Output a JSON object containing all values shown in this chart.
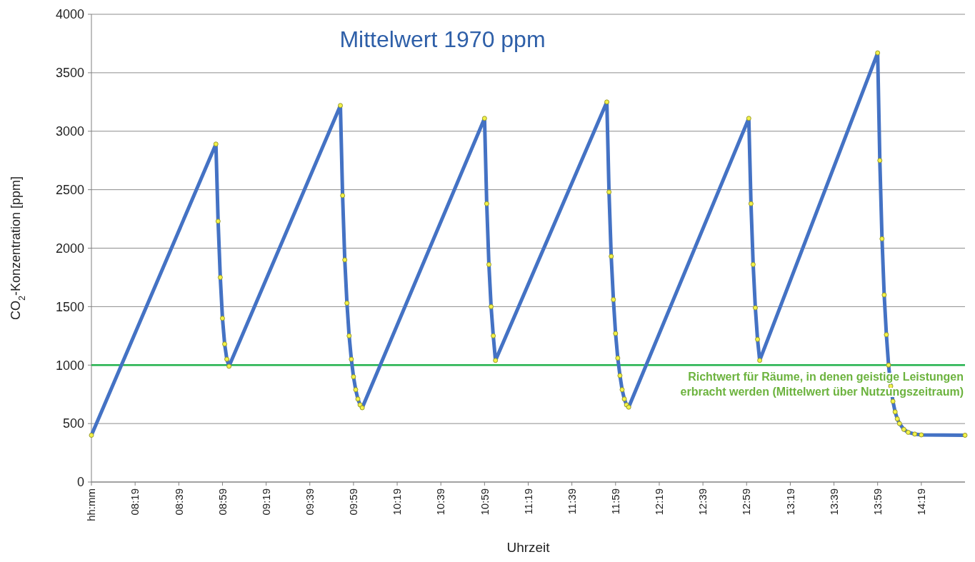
{
  "chart_data": {
    "type": "line",
    "title": "Mittelwert 1970 ppm",
    "xlabel": "Uhrzeit",
    "ylabel": "CO$_{2}$-Konzentration [ppm]",
    "xlim": [
      7.9833,
      14.65
    ],
    "xticks": [
      {
        "value": 7.9833,
        "label": "hh:mm"
      },
      {
        "value": 8.3167,
        "label": "08:19"
      },
      {
        "value": 8.65,
        "label": "08:39"
      },
      {
        "value": 8.9833,
        "label": "08:59"
      },
      {
        "value": 9.3167,
        "label": "09:19"
      },
      {
        "value": 9.65,
        "label": "09:39"
      },
      {
        "value": 9.9833,
        "label": "09:59"
      },
      {
        "value": 10.3167,
        "label": "10:19"
      },
      {
        "value": 10.65,
        "label": "10:39"
      },
      {
        "value": 10.9833,
        "label": "10:59"
      },
      {
        "value": 11.3167,
        "label": "11:19"
      },
      {
        "value": 11.65,
        "label": "11:39"
      },
      {
        "value": 11.9833,
        "label": "11:59"
      },
      {
        "value": 12.3167,
        "label": "12:19"
      },
      {
        "value": 12.65,
        "label": "12:39"
      },
      {
        "value": 12.9833,
        "label": "12:59"
      },
      {
        "value": 13.3167,
        "label": "13:19"
      },
      {
        "value": 13.65,
        "label": "13:39"
      },
      {
        "value": 13.9833,
        "label": "13:59"
      },
      {
        "value": 14.3167,
        "label": "14:19"
      }
    ],
    "ylim": [
      0,
      4000
    ],
    "yticks": [
      0,
      500,
      1000,
      1500,
      2000,
      2500,
      3000,
      3500,
      4000
    ],
    "grid": "y",
    "marker": "circle",
    "line_style": "solid",
    "ref_lines": [
      {
        "axis": "y",
        "value": 1000,
        "label": "Richtwert für Räume, in denen geistige Leistungen erbracht werden (Mittelwert über Nutzungszeitraum)",
        "color": "#22b14c"
      }
    ],
    "series": [
      {
        "color": "#4472c4",
        "x": [
          7.9833,
          8.9333,
          8.95,
          8.9667,
          8.9833,
          9,
          9.0167,
          9.0333,
          9.8833,
          9.9,
          9.9167,
          9.9333,
          9.95,
          9.9667,
          9.9833,
          10,
          10.0167,
          10.0333,
          10.05,
          10.9833,
          11,
          11.0167,
          11.0333,
          11.05,
          11.0667,
          11.9167,
          11.9333,
          11.95,
          11.9667,
          11.9833,
          12,
          12.0167,
          12.0333,
          12.05,
          12.0667,
          12.0833,
          13,
          13.0167,
          13.0333,
          13.05,
          13.0667,
          13.0833,
          13.9833,
          14,
          14.0167,
          14.0333,
          14.05,
          14.0667,
          14.0833,
          14.1,
          14.1167,
          14.1333,
          14.15,
          14.1833,
          14.2167,
          14.2667,
          14.3167,
          14.65
        ],
        "values": [
          400,
          2890,
          2230,
          1750,
          1400,
          1180,
          1050,
          990,
          3220,
          2450,
          1900,
          1530,
          1250,
          1050,
          900,
          790,
          710,
          660,
          635,
          3110,
          2380,
          1860,
          1500,
          1250,
          1040,
          3250,
          2480,
          1930,
          1560,
          1270,
          1060,
          910,
          790,
          710,
          660,
          640,
          3110,
          2380,
          1860,
          1490,
          1220,
          1040,
          3670,
          2750,
          2080,
          1600,
          1260,
          1000,
          820,
          690,
          600,
          540,
          500,
          450,
          425,
          410,
          403,
          400
        ]
      }
    ]
  }
}
